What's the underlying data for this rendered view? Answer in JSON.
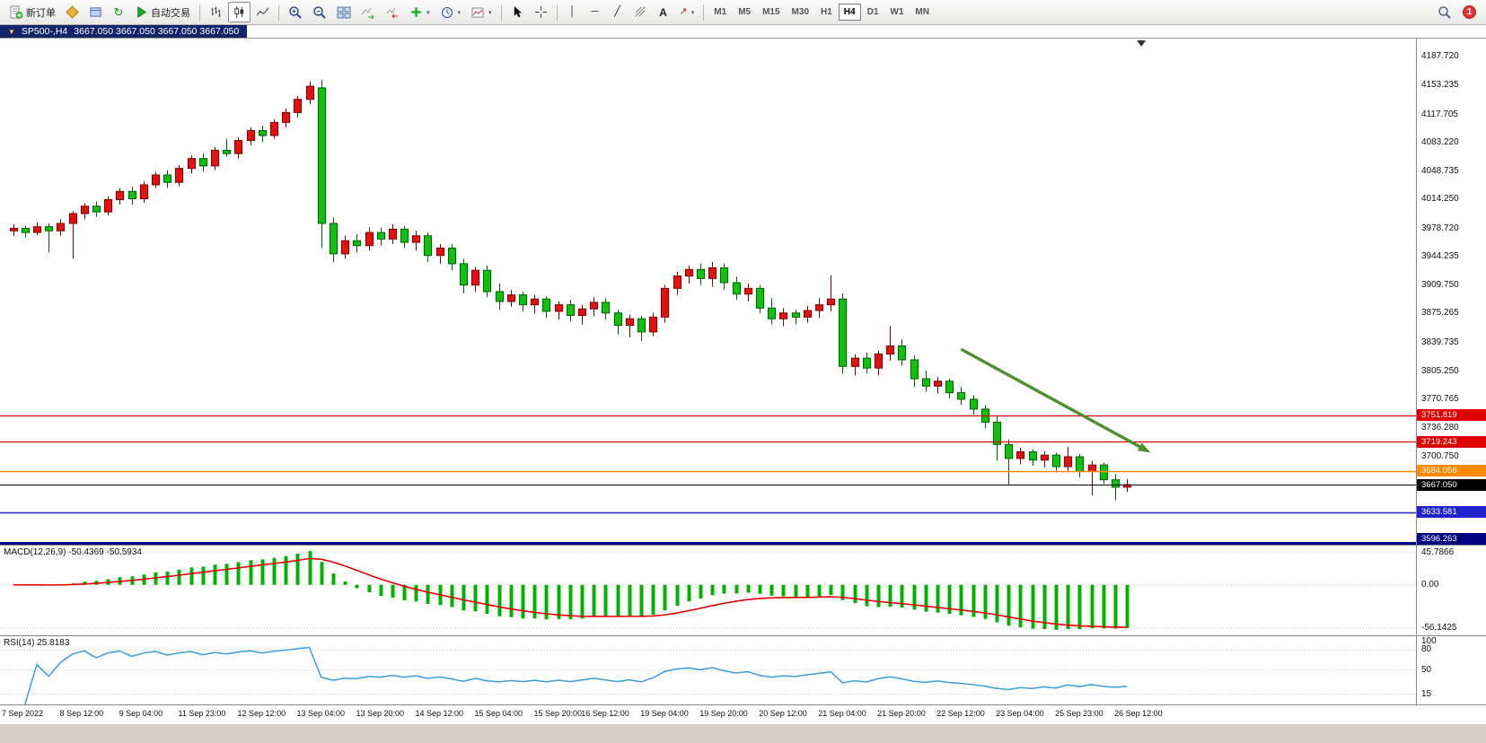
{
  "window": {
    "title_symbol": "SP500-,H4",
    "title_quote": "3667.050 3667.050 3667.050 3667.050"
  },
  "toolbar": {
    "new_order_label": "新订单",
    "auto_trading_label": "自动交易",
    "text_tool_label": "A",
    "timeframes": [
      "M1",
      "M5",
      "M15",
      "M30",
      "H1",
      "H4",
      "D1",
      "W1",
      "MN"
    ],
    "active_timeframe": "H4",
    "notification_count": "1"
  },
  "glyphs": {
    "triangle_down": "▼",
    "caret": "▾",
    "refresh": "↻",
    "vline": "│",
    "hline": "─",
    "trendline": "╱",
    "arrows_tool": "↗"
  },
  "icons": {
    "new-order-icon": "document-with-green-plus",
    "charts-icon": "yellow-diamond",
    "strategy-tester-icon": "blue-layers",
    "refresh-icon": "green-circular-arrow",
    "auto-trading-icon": "green-play-triangle",
    "bar-chart-icon": "ohlc-bars",
    "candlestick-icon": "two-candles",
    "line-chart-icon": "zigzag-line",
    "zoom-in-icon": "magnifier-plus",
    "zoom-out-icon": "magnifier-minus",
    "tile-windows-icon": "four-window-grid",
    "auto-scroll-icon": "chart-with-green-arrow",
    "chart-shift-icon": "chart-with-red-arrow",
    "indicators-icon": "green-plus",
    "periods-icon": "clock",
    "templates-icon": "chart-template",
    "cursor-icon": "pointer-arrow",
    "crosshair-icon": "crosshair",
    "vertical-line-icon": "vertical-line",
    "horizontal-line-icon": "horizontal-line",
    "trendline-icon": "diagonal-line",
    "fibonacci-icon": "fibonacci-lines",
    "text-tool-icon": "letter-A",
    "arrows-tool-icon": "arrow-up-right",
    "search-icon": "magnifier",
    "notification-badge": "red-circle-with-count",
    "chart-menu-icon": "triangle-down",
    "chart-shift-marker": "black-triangle-down"
  },
  "chart_data": {
    "type": "candlestick",
    "title": "SP500-,H4",
    "symbol": "SP500-",
    "period": "H4",
    "colors": {
      "up": "#e01212",
      "up_border": "#7e0000",
      "down": "#0fc00f",
      "down_border": "#025c02"
    },
    "price_axis": {
      "min": 3594,
      "max": 4210,
      "labels": [
        "4187.720",
        "4153.235",
        "4117.705",
        "4083.220",
        "4048.735",
        "4014.250",
        "3978.720",
        "3944.235",
        "3909.750",
        "3875.265",
        "3839.735",
        "3805.250",
        "3770.765",
        "3736.280",
        "3700.750"
      ]
    },
    "level_lines": [
      {
        "price": 3751.819,
        "label": "3751.819",
        "color": "#e00000",
        "width": 1.3
      },
      {
        "price": 3719.243,
        "label": "3719.243",
        "color": "#e00000",
        "width": 1.3
      },
      {
        "price": 3684.056,
        "label": "3684.056",
        "color": "#ff8a00",
        "width": 1.6
      },
      {
        "price": 3667.05,
        "label": "3667.050",
        "color": "#000000",
        "width": 1
      },
      {
        "price": 3633.581,
        "label": "3633.581",
        "color": "#2222cc",
        "width": 1.6
      },
      {
        "price": 3596.263,
        "label": "3596.263",
        "color": "#000080",
        "width": 3
      }
    ],
    "trend_arrow": {
      "from_index": 80,
      "from_price": 3832,
      "to_index": 96,
      "to_price": 3706,
      "color": "#4e8f2e"
    },
    "ohlc": [
      [
        3976,
        3984,
        3970,
        3979
      ],
      [
        3979,
        3982,
        3968,
        3974
      ],
      [
        3974,
        3986,
        3971,
        3981
      ],
      [
        3981,
        3985,
        3950,
        3976
      ],
      [
        3976,
        3990,
        3970,
        3985
      ],
      [
        3985,
        4000,
        3942,
        3997
      ],
      [
        3997,
        4010,
        3990,
        4006
      ],
      [
        4006,
        4012,
        3993,
        3999
      ],
      [
        3999,
        4018,
        3995,
        4014
      ],
      [
        4014,
        4028,
        4008,
        4024
      ],
      [
        4024,
        4030,
        4008,
        4015
      ],
      [
        4015,
        4036,
        4010,
        4032
      ],
      [
        4032,
        4048,
        4028,
        4044
      ],
      [
        4044,
        4050,
        4028,
        4035
      ],
      [
        4035,
        4056,
        4030,
        4052
      ],
      [
        4052,
        4068,
        4046,
        4064
      ],
      [
        4064,
        4070,
        4048,
        4055
      ],
      [
        4055,
        4078,
        4050,
        4074
      ],
      [
        4074,
        4088,
        4066,
        4070
      ],
      [
        4070,
        4090,
        4064,
        4086
      ],
      [
        4086,
        4102,
        4080,
        4098
      ],
      [
        4098,
        4104,
        4084,
        4092
      ],
      [
        4092,
        4112,
        4088,
        4108
      ],
      [
        4108,
        4125,
        4102,
        4120
      ],
      [
        4120,
        4140,
        4114,
        4136
      ],
      [
        4136,
        4158,
        4130,
        4152
      ],
      [
        4150,
        4160,
        3955,
        3985
      ],
      [
        3985,
        3992,
        3938,
        3948
      ],
      [
        3948,
        3970,
        3942,
        3964
      ],
      [
        3964,
        3972,
        3950,
        3958
      ],
      [
        3958,
        3980,
        3952,
        3974
      ],
      [
        3974,
        3980,
        3958,
        3966
      ],
      [
        3966,
        3984,
        3960,
        3978
      ],
      [
        3978,
        3982,
        3955,
        3962
      ],
      [
        3962,
        3976,
        3952,
        3970
      ],
      [
        3970,
        3974,
        3938,
        3946
      ],
      [
        3946,
        3960,
        3936,
        3955
      ],
      [
        3955,
        3960,
        3928,
        3936
      ],
      [
        3936,
        3942,
        3900,
        3910
      ],
      [
        3910,
        3932,
        3902,
        3928
      ],
      [
        3928,
        3934,
        3895,
        3902
      ],
      [
        3902,
        3912,
        3880,
        3890
      ],
      [
        3890,
        3904,
        3884,
        3898
      ],
      [
        3898,
        3902,
        3878,
        3886
      ],
      [
        3886,
        3898,
        3875,
        3893
      ],
      [
        3893,
        3896,
        3870,
        3878
      ],
      [
        3878,
        3890,
        3868,
        3886
      ],
      [
        3886,
        3892,
        3866,
        3873
      ],
      [
        3873,
        3886,
        3862,
        3881
      ],
      [
        3881,
        3895,
        3872,
        3889
      ],
      [
        3889,
        3894,
        3868,
        3876
      ],
      [
        3876,
        3880,
        3850,
        3861
      ],
      [
        3861,
        3874,
        3846,
        3869
      ],
      [
        3869,
        3872,
        3842,
        3853
      ],
      [
        3853,
        3876,
        3848,
        3871
      ],
      [
        3871,
        3910,
        3864,
        3906
      ],
      [
        3906,
        3926,
        3898,
        3921
      ],
      [
        3921,
        3934,
        3912,
        3929
      ],
      [
        3929,
        3936,
        3910,
        3918
      ],
      [
        3918,
        3938,
        3908,
        3931
      ],
      [
        3931,
        3936,
        3904,
        3913
      ],
      [
        3913,
        3920,
        3892,
        3899
      ],
      [
        3899,
        3912,
        3890,
        3906
      ],
      [
        3906,
        3910,
        3876,
        3882
      ],
      [
        3882,
        3894,
        3862,
        3869
      ],
      [
        3869,
        3882,
        3860,
        3876
      ],
      [
        3876,
        3880,
        3862,
        3871
      ],
      [
        3871,
        3885,
        3864,
        3879
      ],
      [
        3879,
        3894,
        3870,
        3886
      ],
      [
        3886,
        3922,
        3878,
        3893
      ],
      [
        3893,
        3900,
        3802,
        3811
      ],
      [
        3811,
        3826,
        3800,
        3821
      ],
      [
        3821,
        3828,
        3802,
        3809
      ],
      [
        3809,
        3830,
        3800,
        3826
      ],
      [
        3826,
        3860,
        3818,
        3836
      ],
      [
        3836,
        3844,
        3812,
        3819
      ],
      [
        3819,
        3824,
        3786,
        3796
      ],
      [
        3796,
        3806,
        3780,
        3787
      ],
      [
        3787,
        3798,
        3778,
        3793
      ],
      [
        3793,
        3796,
        3772,
        3779
      ],
      [
        3779,
        3786,
        3764,
        3771
      ],
      [
        3771,
        3776,
        3752,
        3759
      ],
      [
        3759,
        3764,
        3736,
        3743
      ],
      [
        3743,
        3750,
        3696,
        3716
      ],
      [
        3716,
        3722,
        3666,
        3699
      ],
      [
        3699,
        3712,
        3692,
        3707
      ],
      [
        3707,
        3710,
        3690,
        3697
      ],
      [
        3697,
        3708,
        3688,
        3703
      ],
      [
        3703,
        3706,
        3682,
        3689
      ],
      [
        3689,
        3713,
        3684,
        3701
      ],
      [
        3701,
        3704,
        3676,
        3683
      ],
      [
        3683,
        3696,
        3654,
        3691
      ],
      [
        3691,
        3694,
        3668,
        3673
      ],
      [
        3673,
        3680,
        3648,
        3664
      ],
      [
        3664,
        3674,
        3658,
        3667.05
      ]
    ],
    "time_labels": [
      "7 Sep 2022",
      "8 Sep 12:00",
      "9 Sep 04:00",
      "11 Sep 23:00",
      "12 Sep 12:00",
      "13 Sep 04:00",
      "13 Sep 20:00",
      "14 Sep 12:00",
      "15 Sep 04:00",
      "15 Sep 20:00",
      "16 Sep 12:00",
      "19 Sep 04:00",
      "19 Sep 20:00",
      "20 Sep 12:00",
      "21 Sep 04:00",
      "21 Sep 20:00",
      "22 Sep 12:00",
      "23 Sep 04:00",
      "25 Sep 23:00",
      "26 Sep 12:00"
    ],
    "indicators": [
      {
        "name": "MACD",
        "label": "MACD(12,26,9)",
        "values_text": "-50.4369 -50.5934",
        "full_text": "MACD(12,26,9) -50.4369 -50.5934",
        "params": [
          12,
          26,
          9
        ],
        "colors": {
          "histogram": "#00b200",
          "signal": "#e80000"
        },
        "axis_labels": [
          {
            "text": "45.7866",
            "pos": "top"
          },
          {
            "text": "0.00",
            "pos": "zero"
          },
          {
            "text": "-56.1425",
            "pos": "bottom"
          }
        ]
      },
      {
        "name": "RSI",
        "label": "RSI(14)",
        "values_text": "25.8183",
        "full_text": "RSI(14) 25.8183",
        "params": [
          14
        ],
        "color": "#3b9be0",
        "levels": [
          80,
          50,
          15
        ],
        "axis_labels": [
          {
            "text": "100",
            "value": 100
          },
          {
            "text": "80",
            "value": 80
          },
          {
            "text": "50",
            "value": 50
          },
          {
            "text": "15",
            "value": 15
          }
        ]
      }
    ]
  }
}
